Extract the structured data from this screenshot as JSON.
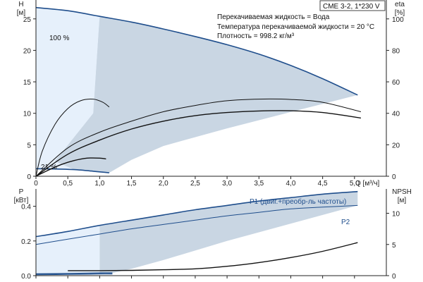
{
  "chart_data": [
    {
      "type": "line",
      "title": "CME 3-2, 1*230 V",
      "info_lines": [
        "Перекачиваемая жидкость = Вода",
        "Температура перекачиваемой жидкости = 20 °C",
        "Плотность = 998.2 кг/м³"
      ],
      "xlabel": "Q [м³/ч]",
      "ylabel_left": [
        "H",
        "[м]"
      ],
      "ylabel_right": [
        "eta",
        "[%]"
      ],
      "xlim": [
        0,
        5.5
      ],
      "ylim_left": [
        0,
        28
      ],
      "ylim_right": [
        0,
        112
      ],
      "x_ticks": [
        "0",
        "0,5",
        "1,0",
        "1,5",
        "2,0",
        "2,5",
        "3,0",
        "3,5",
        "4,0",
        "4,5",
        "5,0"
      ],
      "y_ticks_left": [
        "0",
        "5",
        "10",
        "15",
        "20",
        "25"
      ],
      "y_ticks_right": [
        "0",
        "20",
        "40",
        "60",
        "80",
        "100"
      ],
      "annotations": [
        "100 %",
        "21 %"
      ],
      "series": [
        {
          "role": "H max",
          "label": "100 %",
          "x": [
            0,
            0.5,
            1.0,
            1.5,
            2.0,
            2.5,
            3.0,
            3.5,
            4.0,
            4.5,
            5.05
          ],
          "y": [
            26.8,
            26.3,
            25.4,
            24.5,
            23.4,
            22.2,
            20.9,
            19.4,
            17.6,
            15.5,
            12.9
          ]
        },
        {
          "role": "H min",
          "label": "21 %",
          "x": [
            0,
            0.3,
            0.6,
            0.9,
            1.15
          ],
          "y": [
            1.2,
            1.15,
            1.05,
            0.8,
            0.55
          ]
        },
        {
          "role": "eta at max speed",
          "axis": "right",
          "x": [
            0,
            0.5,
            1.0,
            1.5,
            2.0,
            2.5,
            3.0,
            3.5,
            4.0,
            4.5,
            5.1
          ],
          "y": [
            0,
            18,
            28,
            35,
            41,
            45,
            48,
            49,
            48.8,
            47,
            41
          ]
        },
        {
          "role": "eta system",
          "axis": "right",
          "x": [
            0,
            0.5,
            1.0,
            1.5,
            2.0,
            2.5,
            3.0,
            3.5,
            4.0,
            4.5,
            5.1
          ],
          "y": [
            0,
            14,
            23,
            30,
            35,
            38.5,
            40.5,
            41.5,
            41.6,
            40.5,
            37
          ]
        },
        {
          "role": "eta reduced speed",
          "axis": "right",
          "x": [
            0,
            0.1,
            0.3,
            0.5,
            0.7,
            0.9,
            1.05,
            1.15
          ],
          "y": [
            0,
            16,
            33,
            43,
            48,
            49,
            47,
            44
          ]
        },
        {
          "role": "eta min speed",
          "axis": "right",
          "x": [
            0,
            0.2,
            0.4,
            0.6,
            0.8,
            1.0,
            1.1
          ],
          "y": [
            0,
            4,
            7.5,
            10,
            11.5,
            11.5,
            11
          ]
        }
      ]
    },
    {
      "type": "line",
      "xlim": [
        0,
        5.5
      ],
      "ylabel_left": [
        "P",
        "[кВт]"
      ],
      "ylabel_right": [
        "NPSH",
        "[м]"
      ],
      "ylim_left": [
        0,
        0.5
      ],
      "ylim_right": [
        0,
        13.9
      ],
      "y_ticks_left": [
        "0.0",
        "0.2",
        "0.4"
      ],
      "y_ticks_right": [
        "0",
        "5",
        "10"
      ],
      "series": [
        {
          "name": "P1 (двиг.+преобр-ль частоты)",
          "axis": "left",
          "x": [
            0,
            0.5,
            1.0,
            1.5,
            2.0,
            2.5,
            3.0,
            3.5,
            4.0,
            4.5,
            5.05
          ],
          "y": [
            0.225,
            0.255,
            0.29,
            0.32,
            0.35,
            0.38,
            0.405,
            0.43,
            0.45,
            0.47,
            0.485
          ]
        },
        {
          "name": "P2",
          "axis": "left",
          "x": [
            0,
            0.5,
            1.0,
            1.5,
            2.0,
            2.5,
            3.0,
            3.5,
            4.0,
            4.5,
            5.05
          ],
          "y": [
            0.18,
            0.21,
            0.24,
            0.27,
            0.295,
            0.32,
            0.345,
            0.365,
            0.385,
            0.395,
            0.405
          ]
        },
        {
          "role": "NPSH",
          "axis": "right",
          "x": [
            0.5,
            1.0,
            1.5,
            2.0,
            2.5,
            3.0,
            3.5,
            4.0,
            4.5,
            5.05
          ],
          "y": [
            0.8,
            0.8,
            0.85,
            0.95,
            1.1,
            1.5,
            2.1,
            2.9,
            3.9,
            5.3
          ]
        },
        {
          "role": "P1 min speed",
          "axis": "left",
          "x": [
            0,
            0.5,
            1.0,
            1.2
          ],
          "y": [
            0.01,
            0.012,
            0.015,
            0.015
          ]
        },
        {
          "role": "P2 min speed",
          "axis": "left",
          "x": [
            0,
            0.5,
            1.0,
            1.2
          ],
          "y": [
            0.005,
            0.007,
            0.009,
            0.009
          ]
        }
      ]
    }
  ],
  "colors": {
    "fill_main": "#c9d6e3",
    "fill_light": "#e6f0fb",
    "curve_blue": "#1f4e8c",
    "curve_black": "#111111",
    "axis": "#222222"
  }
}
